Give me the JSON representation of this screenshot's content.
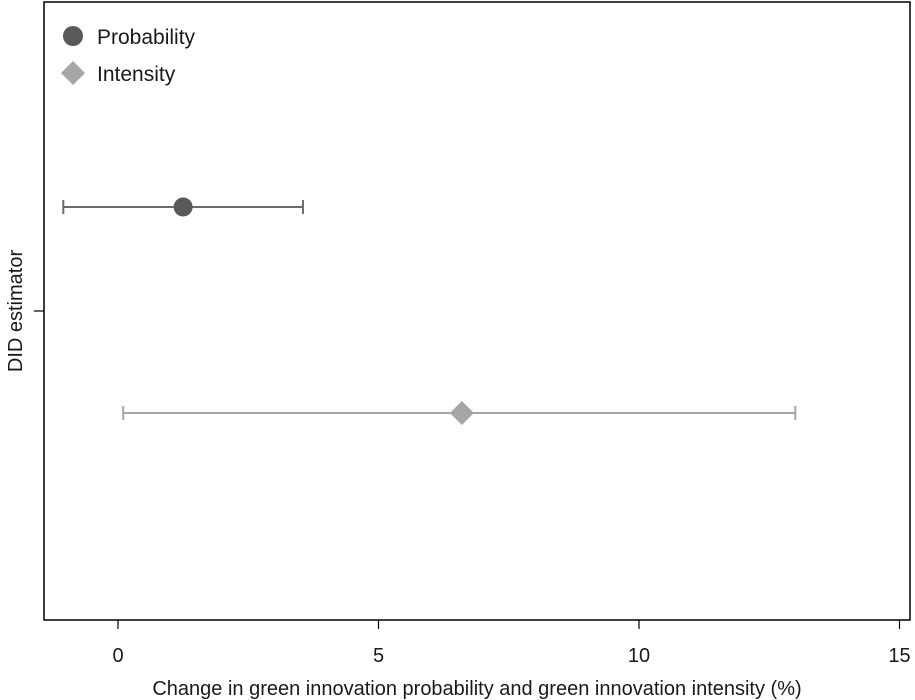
{
  "chart_data": {
    "type": "scatter",
    "title": "",
    "xlabel": "Change in green innovation probability and green innovation intensity (%)",
    "ylabel": "DID estimator",
    "xlim": [
      -1.4,
      15.2
    ],
    "xticks": [
      0,
      5,
      10,
      15
    ],
    "xtick_labels": [
      "0",
      "5",
      "10",
      "15"
    ],
    "grid": false,
    "legend_position": "top-left",
    "series": [
      {
        "name": "Probability",
        "marker": "circle",
        "color": "#595959",
        "estimate": 1.25,
        "ci_low": -1.05,
        "ci_high": 3.55,
        "row": 1
      },
      {
        "name": "Intensity",
        "marker": "diamond",
        "color": "#a6a6a6",
        "estimate": 6.6,
        "ci_low": 0.1,
        "ci_high": 13.0,
        "row": 2
      }
    ]
  }
}
